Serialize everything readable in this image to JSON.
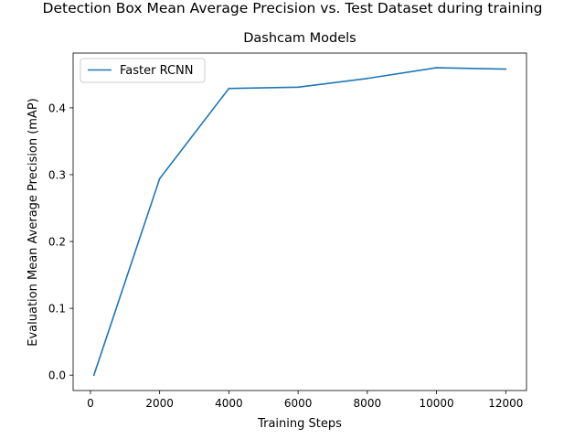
{
  "chart_data": {
    "type": "line",
    "suptitle": "Detection Box Mean Average Precision vs. Test Dataset during training",
    "title": "Dashcam Models",
    "xlabel": "Training Steps",
    "ylabel": "Evaluation Mean Average Precision (mAP)",
    "xlim": [
      -500,
      12600
    ],
    "ylim": [
      -0.023,
      0.482
    ],
    "xticks": [
      0,
      2000,
      4000,
      6000,
      8000,
      10000,
      12000
    ],
    "yticks": [
      0.0,
      0.1,
      0.2,
      0.3,
      0.4
    ],
    "xtick_labels": [
      "0",
      "2000",
      "4000",
      "6000",
      "8000",
      "10000",
      "12000"
    ],
    "ytick_labels": [
      "0.0",
      "0.1",
      "0.2",
      "0.3",
      "0.4"
    ],
    "grid": false,
    "legend_position": "upper-left",
    "series": [
      {
        "name": "Faster RCNN",
        "color": "#1f77b4",
        "x": [
          100,
          2000,
          4000,
          6000,
          8000,
          10000,
          12000
        ],
        "y": [
          0.0,
          0.294,
          0.429,
          0.431,
          0.444,
          0.46,
          0.458
        ]
      }
    ]
  }
}
